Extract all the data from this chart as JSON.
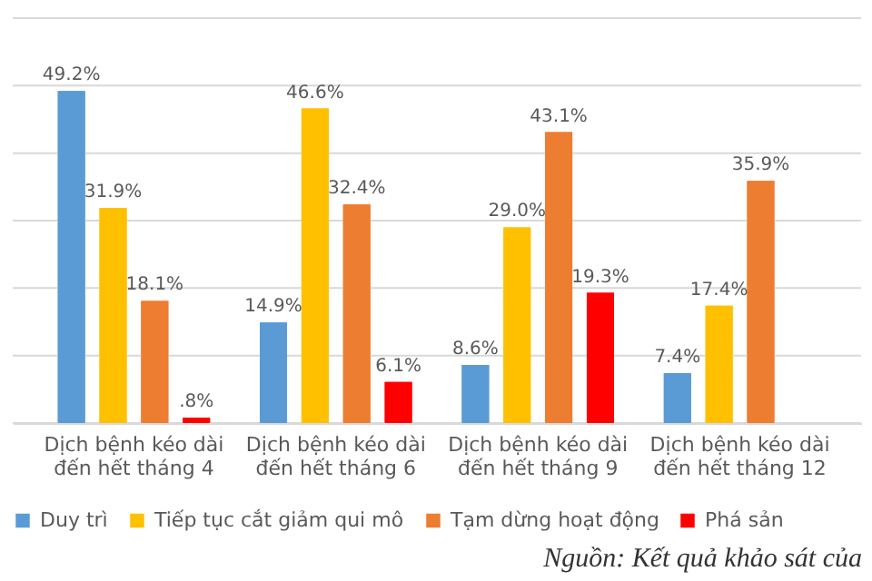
{
  "chart_data": {
    "type": "bar",
    "categories": [
      "Dịch bệnh kéo dài đến hết tháng 4",
      "Dịch bệnh kéo dài đến hết tháng 6",
      "Dịch bệnh kéo dài đến hết tháng 9",
      "Dịch bệnh kéo dài đến hết tháng 12"
    ],
    "series": [
      {
        "name": "Duy trì",
        "color": "#5b9bd5",
        "values": [
          49.2,
          14.9,
          8.6,
          7.4
        ],
        "value_labels": [
          "49.2%",
          "14.9%",
          "8.6%",
          "7.4%"
        ]
      },
      {
        "name": "Tiếp tục cắt giảm qui mô",
        "color": "#ffc000",
        "values": [
          31.9,
          46.6,
          29.0,
          17.4
        ],
        "value_labels": [
          "31.9%",
          "46.6%",
          "29.0%",
          "17.4%"
        ]
      },
      {
        "name": "Tạm dừng hoạt động",
        "color": "#ed7d31",
        "values": [
          18.1,
          32.4,
          43.1,
          35.9
        ],
        "value_labels": [
          "18.1%",
          "32.4%",
          "43.1%",
          "35.9%"
        ]
      },
      {
        "name": "Phá sản",
        "color": "#ff0000",
        "values": [
          0.8,
          6.1,
          19.3,
          null
        ],
        "value_labels": [
          ".8%",
          "6.1%",
          "19.3%",
          null
        ]
      }
    ],
    "ylim": [
      0,
      60
    ],
    "yticks": [
      {
        "value": 0,
        "label": null
      },
      {
        "value": 10,
        "label": null
      },
      {
        "value": 20,
        "label": null
      },
      {
        "value": 30,
        "label": null
      },
      {
        "value": 40,
        "label": null
      },
      {
        "value": 50,
        "label": null
      },
      {
        "value": 60,
        "label": null
      }
    ],
    "tick_labels": "x",
    "grid": "y",
    "legend": "bottom",
    "annotations": [
      "Nguồn: Kết quả khảo sát của"
    ]
  }
}
